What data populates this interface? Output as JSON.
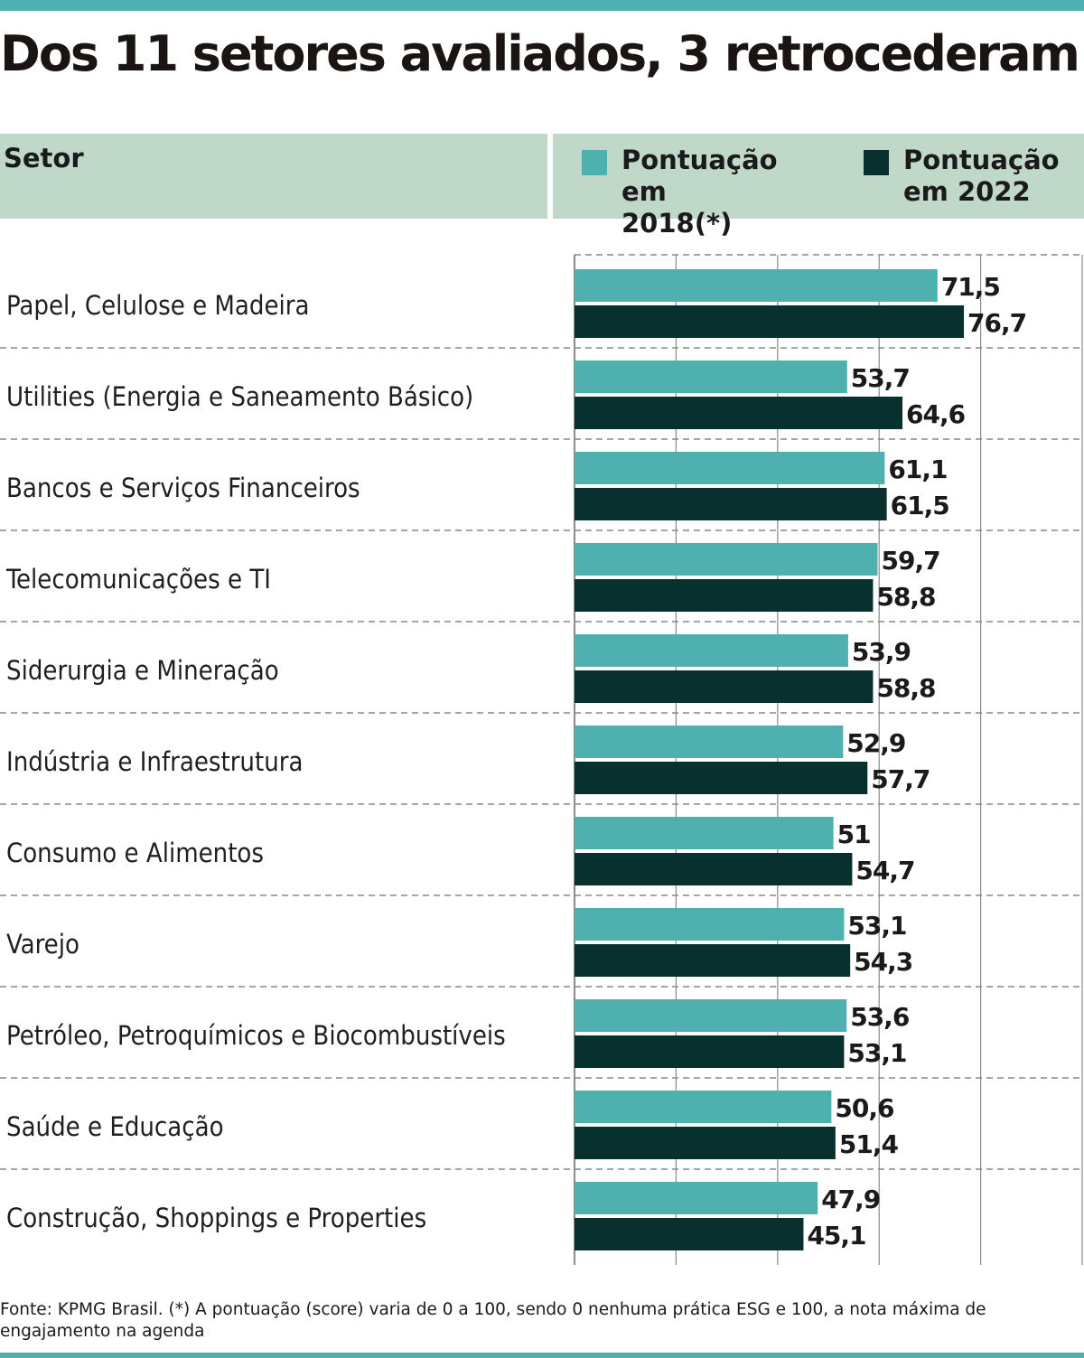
{
  "title": "Dos 11 setores avaliados, 3 retrocederam",
  "header": {
    "setor_label": "Setor",
    "legend": [
      {
        "label": "Pontuação em 2018(*)",
        "color": "#4fb0b0"
      },
      {
        "label": "Pontuação em 2022",
        "color": "#08302f"
      }
    ]
  },
  "chart_data": {
    "type": "bar",
    "orientation": "horizontal",
    "categories": [
      "Papel, Celulose e Madeira",
      "Utilities (Energia e Saneamento Básico)",
      "Bancos e Serviços Financeiros",
      "Telecomunicações e TI",
      "Siderurgia e Mineração",
      "Indústria e Infraestrutura",
      "Consumo e Alimentos",
      "Varejo",
      "Petróleo, Petroquímicos e Biocombustíveis",
      "Saúde e Educação",
      "Construção, Shoppings e Properties"
    ],
    "series": [
      {
        "name": "Pontuação em 2018(*)",
        "color": "#4fb0b0",
        "values": [
          71.5,
          53.7,
          61.1,
          59.7,
          53.9,
          52.9,
          51,
          53.1,
          53.6,
          50.6,
          47.9
        ],
        "labels": [
          "71,5",
          "53,7",
          "61,1",
          "59,7",
          "53,9",
          "52,9",
          "51",
          "53,1",
          "53,6",
          "50,6",
          "47,9"
        ]
      },
      {
        "name": "Pontuação em 2022",
        "color": "#08302f",
        "values": [
          76.7,
          64.6,
          61.5,
          58.8,
          58.8,
          57.7,
          54.7,
          54.3,
          53.1,
          51.4,
          45.1
        ],
        "labels": [
          "76,7",
          "64,6",
          "61,5",
          "58,8",
          "58,8",
          "57,7",
          "54,7",
          "54,3",
          "53,1",
          "51,4",
          "45,1"
        ]
      }
    ],
    "xlim": [
      0,
      100
    ],
    "grid": true
  },
  "footnote": "Fonte: KPMG Brasil. (*) A pontuação (score) varia de 0 a 100, sendo 0 nenhuma prática ESG e 100, a nota máxima de engajamento na agenda"
}
